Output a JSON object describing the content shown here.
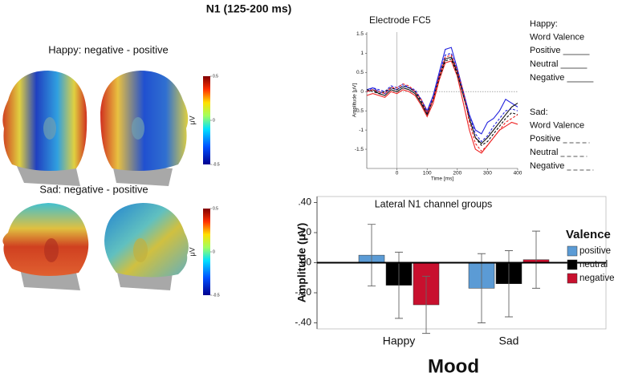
{
  "title": "N1 (125-200 ms)",
  "topomaps": [
    {
      "title": "Happy: negative - positive",
      "colorbar": {
        "label": "μV",
        "lim": [
          -0.5,
          0.5
        ],
        "ticks": [
          0.5,
          0,
          -0.5
        ]
      }
    },
    {
      "title": "Sad: negative - positive",
      "colorbar": {
        "label": "μV",
        "lim": [
          -0.5,
          0.5
        ],
        "ticks": [
          0.5,
          0,
          -0.5
        ]
      }
    }
  ],
  "chart_data": [
    {
      "type": "line",
      "title": "Electrode FC5",
      "x_label": "Time [ms]",
      "y_label": "Amplitude [μV]",
      "x": [
        -100,
        -80,
        -60,
        -40,
        -20,
        0,
        20,
        40,
        60,
        80,
        100,
        120,
        140,
        160,
        180,
        200,
        220,
        240,
        260,
        280,
        300,
        320,
        340,
        360,
        380,
        400
      ],
      "xlim": [
        -100,
        400
      ],
      "xticks": [
        0,
        100,
        200,
        300,
        400
      ],
      "ylim": [
        -2.0,
        1.55
      ],
      "yticks": [
        1.5,
        1,
        0.5,
        0,
        -0.5,
        -1,
        -1.5
      ],
      "groups": [
        {
          "name": "Happy:",
          "label": "Word Valence",
          "dashed": false,
          "series": [
            {
              "name": "Positive",
              "color": "#2222dd",
              "values": [
                0.05,
                0.1,
                0.0,
                -0.05,
                0.1,
                0.05,
                0.15,
                0.1,
                0.0,
                -0.2,
                -0.5,
                -0.1,
                0.5,
                1.1,
                1.15,
                0.6,
                0.0,
                -0.6,
                -1.0,
                -1.1,
                -0.8,
                -0.7,
                -0.5,
                -0.2,
                -0.3,
                -0.4
              ]
            },
            {
              "name": "Neutral",
              "color": "#111111",
              "values": [
                0.0,
                0.05,
                -0.05,
                -0.1,
                0.05,
                0.0,
                0.1,
                0.05,
                -0.05,
                -0.3,
                -0.6,
                -0.2,
                0.4,
                0.85,
                0.9,
                0.5,
                -0.1,
                -0.7,
                -1.2,
                -1.35,
                -1.2,
                -1.0,
                -0.8,
                -0.6,
                -0.4,
                -0.3
              ]
            },
            {
              "name": "Negative",
              "color": "#ee2222",
              "values": [
                -0.1,
                -0.05,
                -0.1,
                -0.15,
                0.0,
                -0.05,
                0.05,
                0.0,
                -0.1,
                -0.35,
                -0.65,
                -0.3,
                0.3,
                0.75,
                0.8,
                0.4,
                -0.3,
                -1.0,
                -1.5,
                -1.6,
                -1.4,
                -1.2,
                -1.0,
                -0.9,
                -0.8,
                -0.85
              ]
            }
          ]
        },
        {
          "name": "Sad:",
          "label": "Word Valence",
          "dashed": true,
          "series": [
            {
              "name": "Positive",
              "color": "#2222dd",
              "values": [
                0.0,
                0.1,
                0.05,
                0.0,
                0.15,
                0.1,
                0.2,
                0.1,
                0.05,
                -0.2,
                -0.55,
                -0.15,
                0.45,
                0.95,
                1.0,
                0.55,
                -0.05,
                -0.6,
                -1.1,
                -1.3,
                -1.15,
                -0.9,
                -0.7,
                -0.5,
                -0.45,
                -0.5
              ]
            },
            {
              "name": "Neutral",
              "color": "#111111",
              "values": [
                0.05,
                0.0,
                -0.05,
                0.0,
                0.1,
                0.05,
                0.15,
                0.1,
                0.0,
                -0.25,
                -0.6,
                -0.2,
                0.35,
                0.8,
                0.85,
                0.45,
                -0.1,
                -0.7,
                -1.2,
                -1.4,
                -1.3,
                -1.1,
                -0.9,
                -0.7,
                -0.55,
                -0.6
              ]
            },
            {
              "name": "Negative",
              "color": "#ee2222",
              "values": [
                0.0,
                0.05,
                0.0,
                -0.05,
                0.1,
                0.1,
                0.2,
                0.15,
                0.0,
                -0.2,
                -0.55,
                -0.2,
                0.4,
                0.9,
                0.95,
                0.55,
                0.0,
                -0.8,
                -1.35,
                -1.55,
                -1.4,
                -1.2,
                -1.0,
                -0.8,
                -0.7,
                -0.6
              ]
            }
          ]
        }
      ]
    },
    {
      "type": "bar",
      "title": "Lateral N1 channel groups",
      "x_label": "Mood",
      "y_label": "Amplitude (μV)",
      "legend_title": "Valence",
      "categories": [
        "Happy",
        "Sad"
      ],
      "ylim": [
        -0.44,
        0.44
      ],
      "yticks": [
        {
          "value": 0.4,
          "label": ".40"
        },
        {
          "value": 0.2,
          "label": ".20"
        },
        {
          "value": 0,
          "label": ".00"
        },
        {
          "value": -0.2,
          "label": "-.20"
        },
        {
          "value": -0.4,
          "label": "-.40"
        }
      ],
      "series": [
        {
          "name": "positive",
          "color": "#5b9bd5",
          "values": [
            0.05,
            -0.17
          ],
          "errors": [
            0.205,
            0.23
          ]
        },
        {
          "name": "neutral",
          "color": "#000000",
          "values": [
            -0.15,
            -0.14
          ],
          "errors": [
            0.22,
            0.22
          ]
        },
        {
          "name": "negative",
          "color": "#c8102e",
          "values": [
            -0.28,
            0.02
          ],
          "errors": [
            0.19,
            0.19
          ]
        }
      ]
    }
  ]
}
